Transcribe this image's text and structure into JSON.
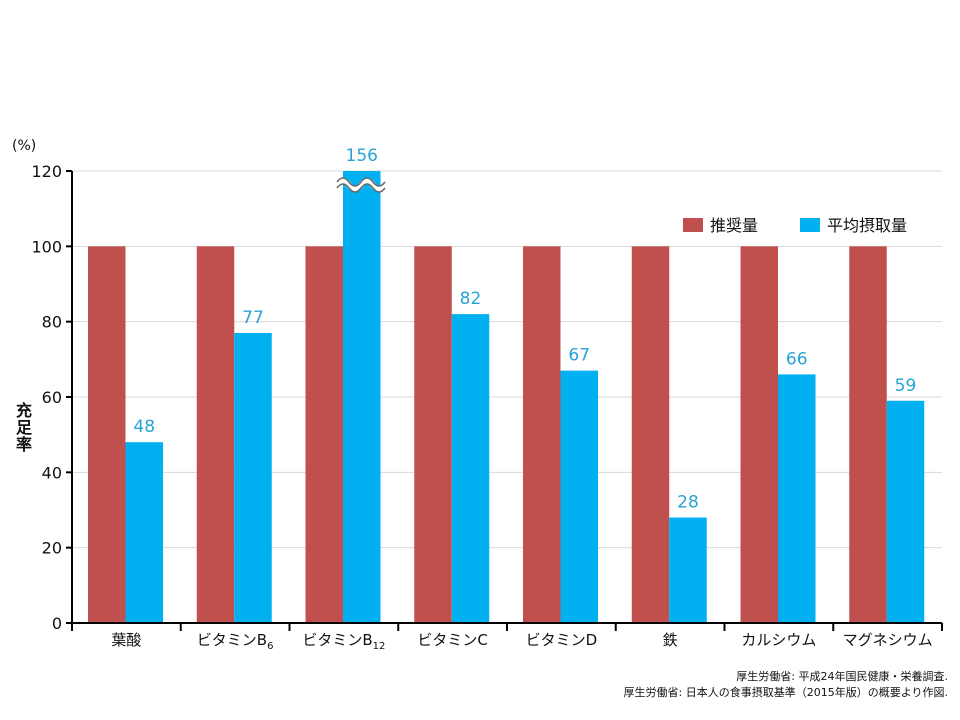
{
  "chart_data": {
    "type": "bar",
    "title": "",
    "unit_label": "(%)",
    "ylabel": "充足率",
    "xlabel": "",
    "ylim": [
      0,
      120
    ],
    "yticks": [
      0,
      20,
      40,
      60,
      80,
      100,
      120
    ],
    "grid": true,
    "legend_position": "top-right",
    "categories": [
      "葉酸",
      "ビタミンB6",
      "ビタミンB12",
      "ビタミンC",
      "ビタミンD",
      "鉄",
      "カルシウム",
      "マグネシウム"
    ],
    "category_parts": [
      {
        "main": "葉酸",
        "sub": ""
      },
      {
        "main": "ビタミンB",
        "sub": "6"
      },
      {
        "main": "ビタミンB",
        "sub": "12"
      },
      {
        "main": "ビタミンC",
        "sub": ""
      },
      {
        "main": "ビタミンD",
        "sub": ""
      },
      {
        "main": "鉄",
        "sub": ""
      },
      {
        "main": "カルシウム",
        "sub": ""
      },
      {
        "main": "マグネシウム",
        "sub": ""
      }
    ],
    "series": [
      {
        "name": "推奨量",
        "color": "#c0504d",
        "values": [
          100,
          100,
          100,
          100,
          100,
          100,
          100,
          100
        ],
        "show_labels": false
      },
      {
        "name": "平均摂取量",
        "color": "#00b0f0",
        "values": [
          48,
          77,
          156,
          82,
          67,
          28,
          66,
          59
        ],
        "show_labels": true
      }
    ],
    "axis_break": {
      "series": "平均摂取量",
      "category": "ビタミンB12"
    },
    "sources": [
      "厚生労働省: 平成24年国民健康・栄養調査.",
      "厚生労働省: 日本人の食事摂取基準（2015年版）の概要より作図."
    ]
  }
}
